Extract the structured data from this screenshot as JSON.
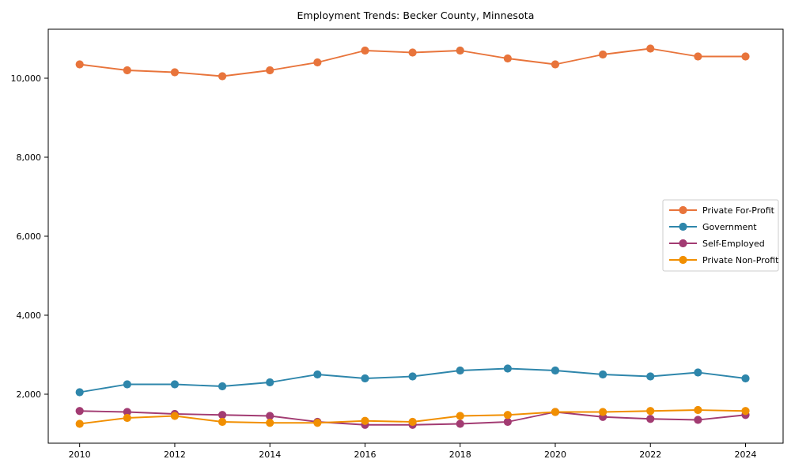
{
  "chart_data": {
    "type": "line",
    "title": "Employment Trends: Becker County, Minnesota",
    "xlabel": "",
    "ylabel": "",
    "grid": false,
    "marker": "circle",
    "legend_position": "center-right",
    "x": [
      2010,
      2011,
      2012,
      2013,
      2014,
      2015,
      2016,
      2017,
      2018,
      2019,
      2020,
      2021,
      2022,
      2023,
      2024
    ],
    "series": [
      {
        "name": "Private For-Profit",
        "color": "#E8743B",
        "values": [
          10350,
          10200,
          10150,
          10050,
          10200,
          10400,
          10700,
          10650,
          10700,
          10500,
          10350,
          10600,
          10750,
          10550,
          10550
        ]
      },
      {
        "name": "Government",
        "color": "#2E86AB",
        "values": [
          2050,
          2250,
          2250,
          2200,
          2300,
          2500,
          2400,
          2450,
          2600,
          2650,
          2600,
          2500,
          2450,
          2550,
          2400
        ]
      },
      {
        "name": "Self-Employed",
        "color": "#A23B72",
        "values": [
          1575,
          1550,
          1500,
          1475,
          1450,
          1300,
          1225,
          1225,
          1250,
          1300,
          1550,
          1425,
          1375,
          1350,
          1475
        ]
      },
      {
        "name": "Private Non-Profit",
        "color": "#F18F01",
        "values": [
          1250,
          1400,
          1450,
          1300,
          1275,
          1275,
          1325,
          1300,
          1450,
          1475,
          1550,
          1550,
          1575,
          1600,
          1575
        ]
      }
    ],
    "xlim": [
      2009.34,
      2024.79
    ],
    "ylim": [
      760,
      11240
    ],
    "xticks": [
      {
        "value": 2010,
        "label": "2010"
      },
      {
        "value": 2012,
        "label": "2012"
      },
      {
        "value": 2014,
        "label": "2014"
      },
      {
        "value": 2016,
        "label": "2016"
      },
      {
        "value": 2018,
        "label": "2018"
      },
      {
        "value": 2020,
        "label": "2020"
      },
      {
        "value": 2022,
        "label": "2022"
      },
      {
        "value": 2024,
        "label": "2024"
      }
    ],
    "yticks": [
      {
        "value": 2000,
        "label": "2,000"
      },
      {
        "value": 4000,
        "label": "4,000"
      },
      {
        "value": 6000,
        "label": "6,000"
      },
      {
        "value": 8000,
        "label": "8,000"
      },
      {
        "value": 10000,
        "label": "10,000"
      }
    ]
  }
}
